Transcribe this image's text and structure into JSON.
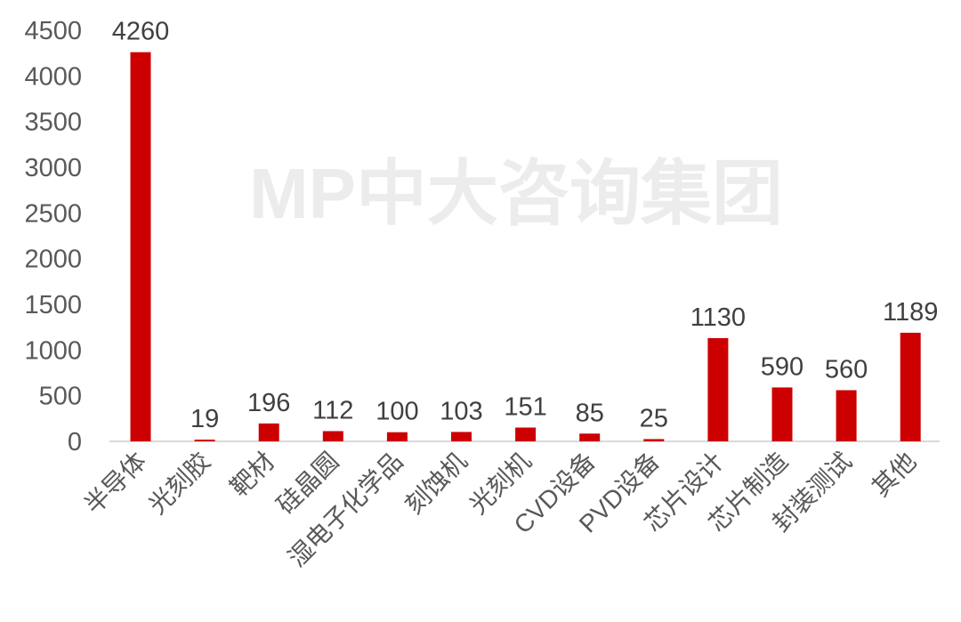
{
  "chart_data": {
    "type": "bar",
    "title": "",
    "xlabel": "",
    "ylabel": "",
    "categories": [
      "半导体",
      "光刻胶",
      "靶材",
      "硅晶圆",
      "湿电子化学品",
      "刻蚀机",
      "光刻机",
      "CVD设备",
      "PVD设备",
      "芯片设计",
      "芯片制造",
      "封装测试",
      "其他"
    ],
    "values": [
      4260,
      19,
      196,
      112,
      100,
      103,
      151,
      85,
      25,
      1130,
      590,
      560,
      1189
    ],
    "ylim": [
      0,
      4500
    ],
    "yticks": [
      0,
      500,
      1000,
      1500,
      2000,
      2500,
      3000,
      3500,
      4000,
      4500
    ],
    "grid": false,
    "legend": "none",
    "bar_color": "#cc0000",
    "watermark": "MP中大咨询集团"
  }
}
